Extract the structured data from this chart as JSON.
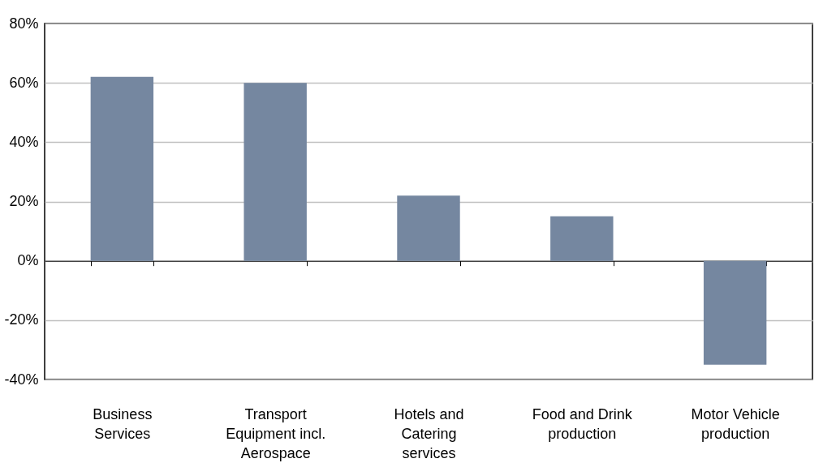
{
  "chart_data": {
    "type": "bar",
    "categories": [
      "Business Services",
      "Transport Equipment incl. Aerospace",
      "Hotels and Catering services",
      "Food and Drink production",
      "Motor Vehicle production"
    ],
    "values": [
      62,
      60,
      22,
      15,
      -35
    ],
    "color": "#7587a0",
    "ylim": [
      -40,
      80
    ],
    "yticks": [
      {
        "value": -40,
        "label": "-40%"
      },
      {
        "value": -20,
        "label": "-20%"
      },
      {
        "value": 0,
        "label": "0%"
      },
      {
        "value": 20,
        "label": "20%"
      },
      {
        "value": 40,
        "label": "40%"
      },
      {
        "value": 60,
        "label": "60%"
      },
      {
        "value": 80,
        "label": "80%"
      }
    ],
    "grid": "y"
  }
}
